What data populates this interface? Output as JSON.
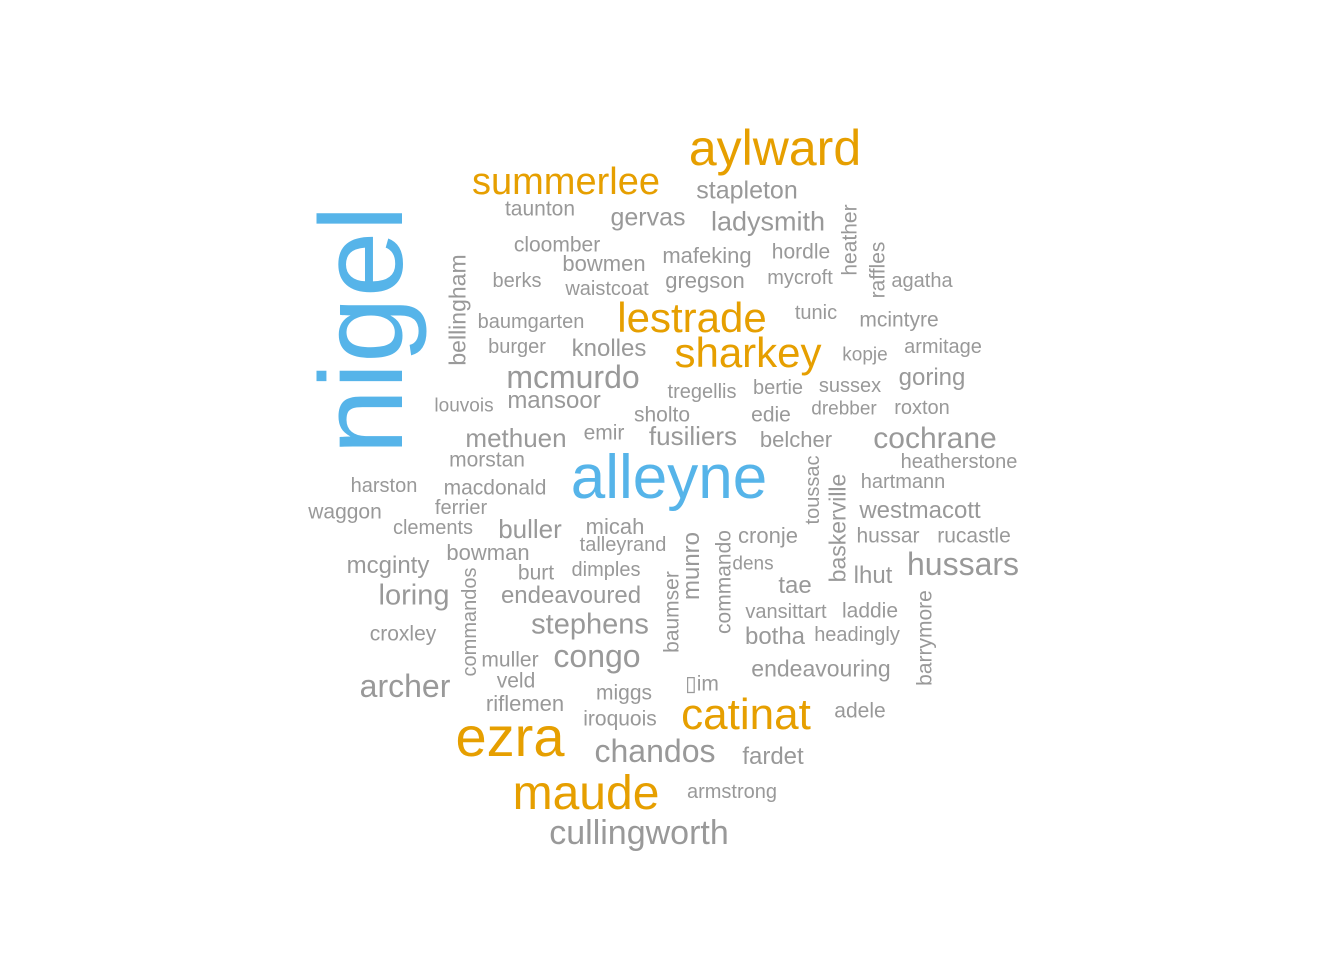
{
  "colors": {
    "primary": "#56B4E9",
    "secondary": "#E69F00",
    "tertiary": "#999999"
  },
  "words": [
    {
      "text": "nigel",
      "color": "primary"
    },
    {
      "text": "alleyne",
      "color": "primary"
    },
    {
      "text": "aylward",
      "color": "secondary"
    },
    {
      "text": "summerlee",
      "color": "secondary"
    },
    {
      "text": "lestrade",
      "color": "secondary"
    },
    {
      "text": "sharkey",
      "color": "secondary"
    },
    {
      "text": "ezra",
      "color": "secondary"
    },
    {
      "text": "catinat",
      "color": "secondary"
    },
    {
      "text": "maude",
      "color": "secondary"
    },
    {
      "text": "stapleton",
      "color": "tertiary"
    },
    {
      "text": "taunton",
      "color": "tertiary"
    },
    {
      "text": "gervas",
      "color": "tertiary"
    },
    {
      "text": "ladysmith",
      "color": "tertiary"
    },
    {
      "text": "heather",
      "color": "tertiary"
    },
    {
      "text": "cloomber",
      "color": "tertiary"
    },
    {
      "text": "mafeking",
      "color": "tertiary"
    },
    {
      "text": "hordle",
      "color": "tertiary"
    },
    {
      "text": "raffles",
      "color": "tertiary"
    },
    {
      "text": "bowmen",
      "color": "tertiary"
    },
    {
      "text": "bellingham",
      "color": "tertiary"
    },
    {
      "text": "berks",
      "color": "tertiary"
    },
    {
      "text": "gregson",
      "color": "tertiary"
    },
    {
      "text": "mycroft",
      "color": "tertiary"
    },
    {
      "text": "agatha",
      "color": "tertiary"
    },
    {
      "text": "waistcoat",
      "color": "tertiary"
    },
    {
      "text": "tunic",
      "color": "tertiary"
    },
    {
      "text": "baumgarten",
      "color": "tertiary"
    },
    {
      "text": "mcintyre",
      "color": "tertiary"
    },
    {
      "text": "burger",
      "color": "tertiary"
    },
    {
      "text": "knolles",
      "color": "tertiary"
    },
    {
      "text": "kopje",
      "color": "tertiary"
    },
    {
      "text": "armitage",
      "color": "tertiary"
    },
    {
      "text": "mcmurdo",
      "color": "tertiary"
    },
    {
      "text": "tregellis",
      "color": "tertiary"
    },
    {
      "text": "bertie",
      "color": "tertiary"
    },
    {
      "text": "sussex",
      "color": "tertiary"
    },
    {
      "text": "goring",
      "color": "tertiary"
    },
    {
      "text": "louvois",
      "color": "tertiary"
    },
    {
      "text": "mansoor",
      "color": "tertiary"
    },
    {
      "text": "sholto",
      "color": "tertiary"
    },
    {
      "text": "edie",
      "color": "tertiary"
    },
    {
      "text": "drebber",
      "color": "tertiary"
    },
    {
      "text": "roxton",
      "color": "tertiary"
    },
    {
      "text": "methuen",
      "color": "tertiary"
    },
    {
      "text": "emir",
      "color": "tertiary"
    },
    {
      "text": "fusiliers",
      "color": "tertiary"
    },
    {
      "text": "belcher",
      "color": "tertiary"
    },
    {
      "text": "cochrane",
      "color": "tertiary"
    },
    {
      "text": "morstan",
      "color": "tertiary"
    },
    {
      "text": "toussac",
      "color": "tertiary"
    },
    {
      "text": "heatherstone",
      "color": "tertiary"
    },
    {
      "text": "harston",
      "color": "tertiary"
    },
    {
      "text": "macdonald",
      "color": "tertiary"
    },
    {
      "text": "hartmann",
      "color": "tertiary"
    },
    {
      "text": "waggon",
      "color": "tertiary"
    },
    {
      "text": "ferrier",
      "color": "tertiary"
    },
    {
      "text": "baskerville",
      "color": "tertiary"
    },
    {
      "text": "westmacott",
      "color": "tertiary"
    },
    {
      "text": "clements",
      "color": "tertiary"
    },
    {
      "text": "buller",
      "color": "tertiary"
    },
    {
      "text": "micah",
      "color": "tertiary"
    },
    {
      "text": "munro",
      "color": "tertiary"
    },
    {
      "text": "cronje",
      "color": "tertiary"
    },
    {
      "text": "hussar",
      "color": "tertiary"
    },
    {
      "text": "rucastle",
      "color": "tertiary"
    },
    {
      "text": "bowman",
      "color": "tertiary"
    },
    {
      "text": "talleyrand",
      "color": "tertiary"
    },
    {
      "text": "commando",
      "color": "tertiary"
    },
    {
      "text": "hussars",
      "color": "tertiary"
    },
    {
      "text": "mcginty",
      "color": "tertiary"
    },
    {
      "text": "commandos",
      "color": "tertiary"
    },
    {
      "text": "burt",
      "color": "tertiary"
    },
    {
      "text": "dimples",
      "color": "tertiary"
    },
    {
      "text": "baumser",
      "color": "tertiary"
    },
    {
      "text": "dens",
      "color": "tertiary"
    },
    {
      "text": "lhut",
      "color": "tertiary"
    },
    {
      "text": "loring",
      "color": "tertiary"
    },
    {
      "text": "endeavoured",
      "color": "tertiary"
    },
    {
      "text": "tae",
      "color": "tertiary"
    },
    {
      "text": "vansittart",
      "color": "tertiary"
    },
    {
      "text": "laddie",
      "color": "tertiary"
    },
    {
      "text": "barrymore",
      "color": "tertiary"
    },
    {
      "text": "stephens",
      "color": "tertiary"
    },
    {
      "text": "croxley",
      "color": "tertiary"
    },
    {
      "text": "botha",
      "color": "tertiary"
    },
    {
      "text": "headingly",
      "color": "tertiary"
    },
    {
      "text": "congo",
      "color": "tertiary"
    },
    {
      "text": "muller",
      "color": "tertiary"
    },
    {
      "text": "endeavouring",
      "color": "tertiary"
    },
    {
      "text": "archer",
      "color": "tertiary"
    },
    {
      "text": "veld",
      "color": "tertiary"
    },
    {
      "text": "miggs",
      "color": "tertiary"
    },
    {
      "text": "▯im",
      "color": "tertiary"
    },
    {
      "text": "riflemen",
      "color": "tertiary"
    },
    {
      "text": "adele",
      "color": "tertiary"
    },
    {
      "text": "iroquois",
      "color": "tertiary"
    },
    {
      "text": "chandos",
      "color": "tertiary"
    },
    {
      "text": "fardet",
      "color": "tertiary"
    },
    {
      "text": "armstrong",
      "color": "tertiary"
    },
    {
      "text": "cullingworth",
      "color": "tertiary"
    }
  ]
}
